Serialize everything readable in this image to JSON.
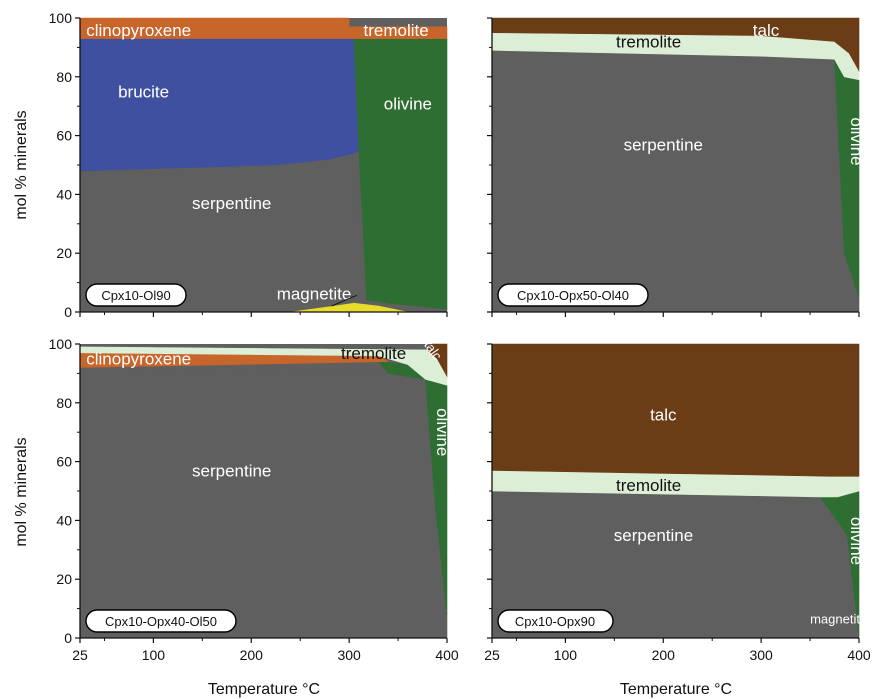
{
  "chart_data": [
    {
      "type": "area",
      "name": "Cpx10-Ol90",
      "x_label": "",
      "y_label": "mol % minerals",
      "xlim": [
        25,
        400
      ],
      "ylim": [
        0,
        100
      ],
      "x_ticks": [
        25,
        100,
        200,
        300,
        400
      ],
      "y_ticks": [
        0,
        20,
        40,
        60,
        80,
        100
      ],
      "regions": [
        {
          "name": "serpentine",
          "color": "#5f5f5f",
          "label": "serpentine",
          "label_pos": [
            180,
            37
          ],
          "points": [
            [
              25,
              0
            ],
            [
              400,
              0
            ],
            [
              400,
              1
            ],
            [
              340,
              3
            ],
            [
              318,
              4
            ],
            [
              305,
              54
            ],
            [
              280,
              52
            ],
            [
              225,
              50
            ],
            [
              25,
              48
            ]
          ]
        },
        {
          "name": "magnetite",
          "color": "#e8dc2c",
          "label": "",
          "label_pos": null,
          "points": [
            [
              240,
              0
            ],
            [
              285,
              2
            ],
            [
              305,
              3
            ],
            [
              330,
              2
            ],
            [
              360,
              0
            ]
          ]
        },
        {
          "name": "brucite",
          "color": "#4050a0",
          "label": "brucite",
          "label_pos": [
            90,
            75
          ],
          "points": [
            [
              25,
              48
            ],
            [
              225,
              50
            ],
            [
              280,
              52
            ],
            [
              305,
              54
            ],
            [
              310,
              55
            ],
            [
              305,
              93
            ],
            [
              25,
              93
            ]
          ]
        },
        {
          "name": "olivine",
          "color": "#2f6e32",
          "label": "olivine",
          "label_pos": [
            360,
            71
          ],
          "points": [
            [
              305,
              93
            ],
            [
              400,
              93
            ],
            [
              400,
              1
            ],
            [
              340,
              3
            ],
            [
              318,
              4
            ],
            [
              310,
              55
            ]
          ]
        },
        {
          "name": "tremolite",
          "color": "#c8652a",
          "label": "tremolite",
          "label_pos": [
            348,
            96
          ],
          "points": [
            [
              300,
              93
            ],
            [
              400,
              93
            ],
            [
              400,
              97
            ],
            [
              300,
              97
            ]
          ]
        },
        {
          "name": "clinopyroxene",
          "color": "#c8652a",
          "label": "clinopyroxene",
          "label_pos": [
            85,
            96
          ],
          "points": [
            [
              25,
              93
            ],
            [
              300,
              93
            ],
            [
              300,
              100
            ],
            [
              25,
              100
            ]
          ]
        }
      ],
      "annotations": [
        {
          "text": "magnetite",
          "pos": [
            180,
            5
          ]
        }
      ]
    },
    {
      "type": "area",
      "name": "Cpx10-Opx50-Ol40",
      "x_label": "",
      "y_label": "",
      "xlim": [
        25,
        400
      ],
      "ylim": [
        0,
        100
      ],
      "x_ticks": [
        25,
        100,
        200,
        300,
        400
      ],
      "y_ticks": [
        0,
        20,
        40,
        60,
        80,
        100
      ],
      "regions": [
        {
          "name": "serpentine",
          "color": "#5f5f5f",
          "label": "serpentine",
          "label_pos": [
            200,
            57
          ],
          "points": [
            [
              25,
              0
            ],
            [
              400,
              0
            ],
            [
              400,
              5
            ],
            [
              385,
              20
            ],
            [
              375,
              86
            ],
            [
              300,
              87
            ],
            [
              25,
              89
            ]
          ]
        },
        {
          "name": "olivine",
          "color": "#2f6e32",
          "label": "olivine",
          "label_pos": [
            392,
            58
          ],
          "points": [
            [
              375,
              86
            ],
            [
              385,
              80
            ],
            [
              400,
              79
            ],
            [
              400,
              5
            ],
            [
              385,
              20
            ]
          ]
        },
        {
          "name": "tremolite",
          "color": "#ddeed6",
          "label": "tremolite",
          "label_pos": [
            185,
            92
          ],
          "points": [
            [
              25,
              89
            ],
            [
              300,
              87
            ],
            [
              375,
              86
            ],
            [
              385,
              80
            ],
            [
              400,
              79
            ],
            [
              400,
              82
            ],
            [
              390,
              88
            ],
            [
              375,
              92
            ],
            [
              300,
              94
            ],
            [
              25,
              95
            ]
          ]
        },
        {
          "name": "talc",
          "color": "#6b3d17",
          "label": "talc",
          "label_pos": [
            305,
            96
          ],
          "points": [
            [
              25,
              95
            ],
            [
              300,
              94
            ],
            [
              375,
              92
            ],
            [
              390,
              88
            ],
            [
              400,
              82
            ],
            [
              400,
              100
            ],
            [
              25,
              100
            ]
          ]
        }
      ],
      "annotations": []
    },
    {
      "type": "area",
      "name": "Cpx10-Opx40-Ol50",
      "x_label": "Temperature °C",
      "y_label": "mol % minerals",
      "xlim": [
        25,
        400
      ],
      "ylim": [
        0,
        100
      ],
      "x_ticks": [
        25,
        100,
        200,
        300,
        400
      ],
      "y_ticks": [
        0,
        20,
        40,
        60,
        80,
        100
      ],
      "regions": [
        {
          "name": "serpentine",
          "color": "#5f5f5f",
          "label": "serpentine",
          "label_pos": [
            180,
            57
          ],
          "points": [
            [
              25,
              0
            ],
            [
              400,
              0
            ],
            [
              400,
              8
            ],
            [
              388,
              45
            ],
            [
              378,
              88
            ],
            [
              340,
              90
            ],
            [
              25,
              92
            ]
          ]
        },
        {
          "name": "olivine",
          "color": "#2f6e32",
          "label": "olivine",
          "label_pos": [
            390,
            70
          ],
          "points": [
            [
              330,
              94
            ],
            [
              360,
              93
            ],
            [
              378,
              88
            ],
            [
              400,
              86
            ],
            [
              400,
              8
            ],
            [
              388,
              45
            ],
            [
              378,
              88
            ],
            [
              340,
              90
            ]
          ]
        },
        {
          "name": "clinopyroxene",
          "color": "#c8652a",
          "label": "clinopyroxene",
          "label_pos": [
            85,
            95
          ],
          "points": [
            [
              25,
              92
            ],
            [
              340,
              94
            ],
            [
              330,
              96
            ],
            [
              25,
              97
            ]
          ]
        },
        {
          "name": "tremolite",
          "color": "#ddeed6",
          "label": "tremolite",
          "label_pos": [
            325,
            97
          ],
          "points": [
            [
              25,
              97
            ],
            [
              330,
              96
            ],
            [
              360,
              93
            ],
            [
              378,
              88
            ],
            [
              400,
              86
            ],
            [
              400,
              89
            ],
            [
              390,
              95
            ],
            [
              380,
              98
            ],
            [
              25,
              99
            ]
          ]
        },
        {
          "name": "talc",
          "color": "#6b3d17",
          "label": "talc",
          "label_pos": [
            382,
            97
          ],
          "points": [
            [
              380,
              98
            ],
            [
              390,
              95
            ],
            [
              400,
              89
            ],
            [
              400,
              100
            ],
            [
              385,
              100
            ]
          ]
        }
      ],
      "annotations": []
    },
    {
      "type": "area",
      "name": "Cpx10-Opx90",
      "x_label": "Temperature °C",
      "y_label": "",
      "xlim": [
        25,
        400
      ],
      "ylim": [
        0,
        100
      ],
      "x_ticks": [
        25,
        100,
        200,
        300,
        400
      ],
      "y_ticks": [
        0,
        20,
        40,
        60,
        80,
        100
      ],
      "regions": [
        {
          "name": "serpentine",
          "color": "#5f5f5f",
          "label": "serpentine",
          "label_pos": [
            190,
            35
          ],
          "points": [
            [
              25,
              0
            ],
            [
              400,
              0
            ],
            [
              400,
              1
            ],
            [
              388,
              35
            ],
            [
              378,
              48
            ],
            [
              360,
              48
            ],
            [
              25,
              50
            ]
          ]
        },
        {
          "name": "olivine",
          "color": "#2f6e32",
          "label": "olivine",
          "label_pos": [
            392,
            33
          ],
          "points": [
            [
              360,
              48
            ],
            [
              378,
              48
            ],
            [
              400,
              50
            ],
            [
              400,
              1
            ],
            [
              388,
              35
            ]
          ]
        },
        {
          "name": "tremolite",
          "color": "#ddeed6",
          "label": "tremolite",
          "label_pos": [
            185,
            52
          ],
          "points": [
            [
              25,
              50
            ],
            [
              360,
              48
            ],
            [
              378,
              48
            ],
            [
              400,
              50
            ],
            [
              400,
              55
            ],
            [
              370,
              55
            ],
            [
              25,
              57
            ]
          ]
        },
        {
          "name": "talc",
          "color": "#6b3d17",
          "label": "talc",
          "label_pos": [
            200,
            76
          ],
          "points": [
            [
              25,
              57
            ],
            [
              370,
              55
            ],
            [
              400,
              55
            ],
            [
              400,
              100
            ],
            [
              25,
              100
            ]
          ]
        }
      ],
      "annotations": [
        {
          "text": "magnetite",
          "pos": [
            350,
            5
          ]
        }
      ]
    }
  ]
}
